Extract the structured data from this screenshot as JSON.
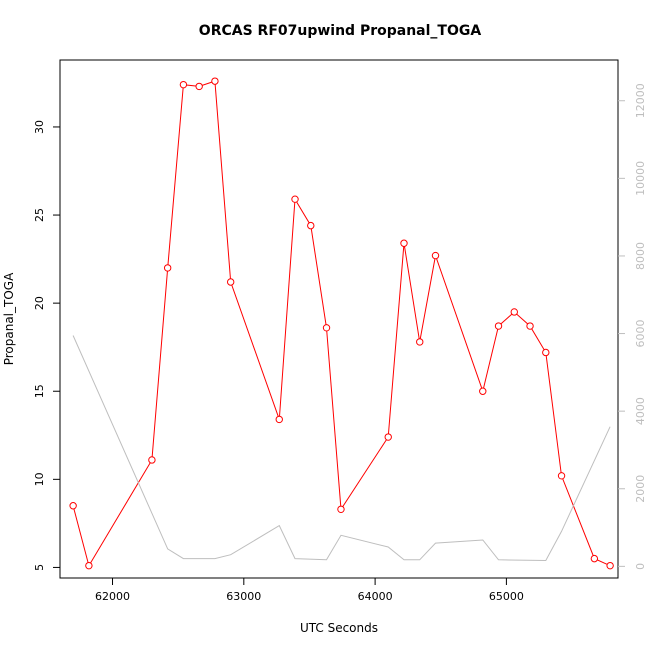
{
  "chart_data": {
    "type": "line",
    "title": "ORCAS RF07upwind Propanal_TOGA",
    "xlabel": "UTC Seconds",
    "ylabel": "Propanal_TOGA",
    "xlim": [
      61600,
      65850
    ],
    "ylim": [
      4.4,
      33.8
    ],
    "y2lim": [
      -300,
      13050
    ],
    "x_ticks": [
      62000,
      63000,
      64000,
      65000
    ],
    "y_ticks": [
      5,
      10,
      15,
      20,
      25,
      30
    ],
    "y2_ticks": [
      0,
      2000,
      4000,
      6000,
      8000,
      10000,
      12000
    ],
    "grid": false,
    "series": [
      {
        "color": "#ff0000",
        "axis": "left",
        "markers": true,
        "x": [
          61700,
          61820,
          62300,
          62420,
          62540,
          62660,
          62780,
          62900,
          63270,
          63390,
          63510,
          63630,
          63740,
          64100,
          64220,
          64340,
          64460,
          64820,
          64940,
          65060,
          65180,
          65300,
          65420,
          65670,
          65790
        ],
        "values": [
          8.5,
          5.1,
          11.1,
          22.0,
          32.4,
          32.3,
          32.6,
          21.2,
          13.4,
          25.9,
          24.4,
          18.6,
          8.3,
          12.4,
          23.4,
          17.8,
          22.7,
          15.0,
          18.7,
          19.5,
          18.7,
          17.2,
          10.2,
          5.5,
          5.1
        ]
      },
      {
        "color": "#bebebe",
        "axis": "right",
        "markers": false,
        "x": [
          61700,
          62420,
          62540,
          62780,
          62900,
          63270,
          63390,
          63630,
          63740,
          64100,
          64220,
          64340,
          64460,
          64820,
          64940,
          65300,
          65420,
          65790
        ],
        "values": [
          5950,
          450,
          200,
          200,
          300,
          1050,
          200,
          170,
          800,
          500,
          170,
          170,
          600,
          680,
          170,
          150,
          900,
          3600
        ]
      }
    ]
  }
}
